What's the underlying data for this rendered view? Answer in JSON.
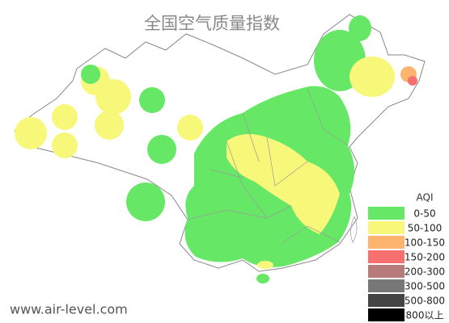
{
  "title": "全国空气质量指数",
  "watermark": "www.air-level.com",
  "legend": {
    "title": "AQI",
    "items": [
      {
        "label": "0-50",
        "color": "#66e866"
      },
      {
        "label": "50-100",
        "color": "#f7f77a"
      },
      {
        "label": "100-150",
        "color": "#fdb46e"
      },
      {
        "label": "150-200",
        "color": "#f77070"
      },
      {
        "label": "200-300",
        "color": "#b87a7a"
      },
      {
        "label": "300-500",
        "color": "#777777"
      },
      {
        "label": "500-800",
        "color": "#444444"
      },
      {
        "label": "800以上",
        "color": "#000000"
      }
    ]
  }
}
